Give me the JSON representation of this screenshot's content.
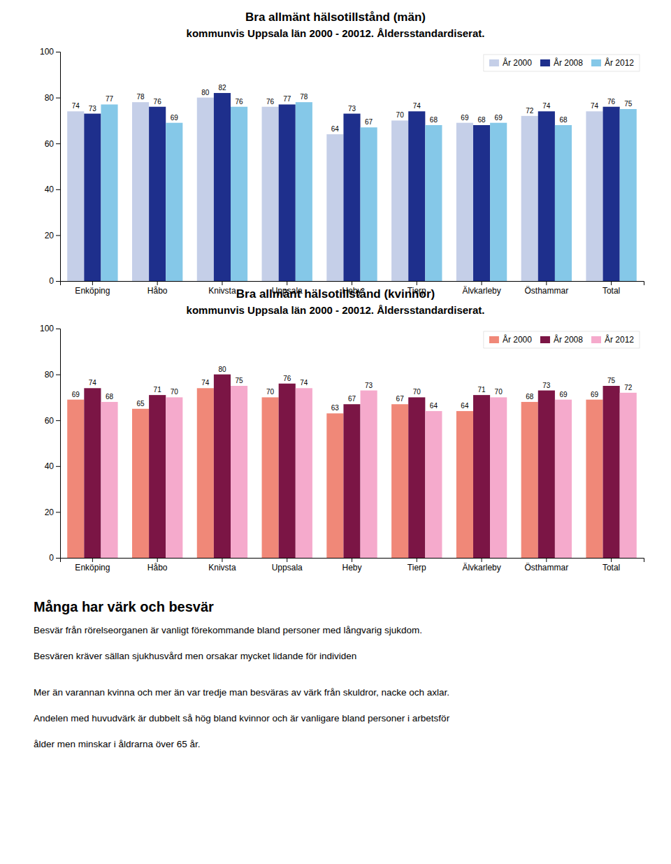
{
  "chart_data": [
    {
      "type": "bar",
      "title": "Bra allmänt hälsotillstånd (män)",
      "subtitle": "kommunvis Uppsala län 2000 - 20012. Åldersstandardiserat.",
      "categories": [
        "Enköping",
        "Håbo",
        "Knivsta",
        "Uppsala",
        "Heby",
        "Tierp",
        "Älvkarleby",
        "Östhammar",
        "Total"
      ],
      "series": [
        {
          "name": "År 2000",
          "color": "#c5cfe8",
          "values": [
            74,
            78,
            80,
            76,
            64,
            70,
            69,
            72,
            74
          ]
        },
        {
          "name": "År 2008",
          "color": "#1e2f8c",
          "values": [
            73,
            76,
            82,
            77,
            73,
            74,
            68,
            74,
            76
          ]
        },
        {
          "name": "År 2012",
          "color": "#85c8e8",
          "values": [
            77,
            69,
            76,
            78,
            67,
            68,
            69,
            68,
            75
          ]
        }
      ],
      "ylim": [
        0,
        100
      ],
      "yticks": [
        0,
        20,
        40,
        60,
        80,
        100
      ],
      "grid": false,
      "legend": "upper right",
      "data_labels": true
    },
    {
      "type": "bar",
      "title": "Bra allmänt hälsotillstånd (kvinnor)",
      "subtitle": "kommunvis Uppsala län 2000 - 20012. Åldersstandardiserat.",
      "categories": [
        "Enköping",
        "Håbo",
        "Knivsta",
        "Uppsala",
        "Heby",
        "Tierp",
        "Älvkarleby",
        "Östhammar",
        "Total"
      ],
      "series": [
        {
          "name": "År 2000",
          "color": "#f08878",
          "values": [
            69,
            65,
            74,
            70,
            63,
            67,
            64,
            68,
            69
          ]
        },
        {
          "name": "År 2008",
          "color": "#7b1545",
          "values": [
            74,
            71,
            80,
            76,
            67,
            70,
            71,
            73,
            75
          ]
        },
        {
          "name": "År 2012",
          "color": "#f5aacc",
          "values": [
            68,
            70,
            75,
            74,
            73,
            64,
            70,
            69,
            72
          ]
        }
      ],
      "ylim": [
        0,
        100
      ],
      "yticks": [
        0,
        20,
        40,
        60,
        80,
        100
      ],
      "grid": false,
      "legend": "upper right",
      "data_labels": true
    }
  ],
  "text_section": {
    "heading": "Många har värk och besvär",
    "lines": [
      "Besvär från rörelseorganen är vanligt förekommande bland personer med långvarig sjukdom.",
      "Besvären kräver sällan sjukhusvård men orsakar mycket lidande för individen",
      "Mer än varannan kvinna och mer än var tredje man besväras av värk från skuldror, nacke och axlar.",
      "Andelen med huvudvärk är dubbelt så hög bland kvinnor och är vanligare bland personer i arbetsför",
      "ålder men minskar i åldrarna över 65 år."
    ]
  }
}
